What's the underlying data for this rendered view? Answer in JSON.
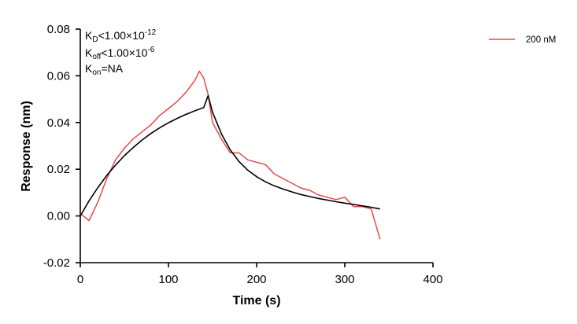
{
  "chart_data": {
    "type": "line",
    "title": "",
    "xlabel": "Time (s)",
    "ylabel": "Response (nm)",
    "xlim": [
      0,
      400
    ],
    "ylim": [
      -0.02,
      0.08
    ],
    "x_ticks": [
      0,
      100,
      200,
      300,
      400
    ],
    "y_ticks": [
      -0.02,
      0.0,
      0.02,
      0.04,
      0.06,
      0.08
    ],
    "x_tick_labels": [
      "0",
      "100",
      "200",
      "300",
      "400"
    ],
    "y_tick_labels": [
      "-0.02",
      "0.00",
      "0.02",
      "0.04",
      "0.06",
      "0.08"
    ],
    "grid": false,
    "legend_position": "top-right",
    "annotations": {
      "kd": {
        "symbol": "K",
        "sub": "D",
        "rel": "<",
        "value": "1.00×10",
        "exp": "-12"
      },
      "koff": {
        "symbol": "K",
        "sub": "off",
        "rel": "<",
        "value": "1.00×10",
        "exp": "-6"
      },
      "kon": {
        "symbol": "K",
        "sub": "on",
        "rel": "=",
        "value": "NA"
      }
    },
    "series": [
      {
        "name": "200 nM",
        "color": "#e8484a",
        "style": "measured",
        "x": [
          0,
          10,
          20,
          30,
          40,
          50,
          60,
          70,
          80,
          90,
          100,
          110,
          120,
          130,
          135,
          140,
          145,
          150,
          160,
          170,
          180,
          190,
          200,
          210,
          220,
          230,
          240,
          250,
          260,
          270,
          280,
          290,
          300,
          310,
          320,
          330,
          340
        ],
        "y": [
          0.001,
          -0.002,
          0.006,
          0.016,
          0.024,
          0.029,
          0.033,
          0.036,
          0.039,
          0.043,
          0.046,
          0.049,
          0.053,
          0.058,
          0.062,
          0.059,
          0.052,
          0.04,
          0.033,
          0.027,
          0.027,
          0.024,
          0.023,
          0.022,
          0.018,
          0.016,
          0.014,
          0.012,
          0.011,
          0.009,
          0.008,
          0.007,
          0.008,
          0.004,
          0.004,
          0.003,
          -0.01
        ]
      },
      {
        "name": "",
        "color": "#000000",
        "style": "fit",
        "x": [
          0,
          10,
          20,
          30,
          40,
          50,
          60,
          70,
          80,
          90,
          100,
          110,
          120,
          130,
          140,
          145,
          150,
          160,
          170,
          180,
          190,
          200,
          210,
          220,
          230,
          240,
          250,
          260,
          270,
          280,
          290,
          300,
          310,
          320,
          330,
          340
        ],
        "y": [
          0.0,
          0.0065,
          0.0122,
          0.0173,
          0.0218,
          0.0258,
          0.0293,
          0.0325,
          0.0353,
          0.0377,
          0.0399,
          0.0418,
          0.0435,
          0.045,
          0.0464,
          0.0515,
          0.0444,
          0.0352,
          0.0283,
          0.0233,
          0.0196,
          0.0168,
          0.0146,
          0.0129,
          0.0115,
          0.0103,
          0.0092,
          0.0083,
          0.0075,
          0.0068,
          0.0061,
          0.0055,
          0.0049,
          0.0043,
          0.0037,
          0.003
        ]
      }
    ]
  }
}
